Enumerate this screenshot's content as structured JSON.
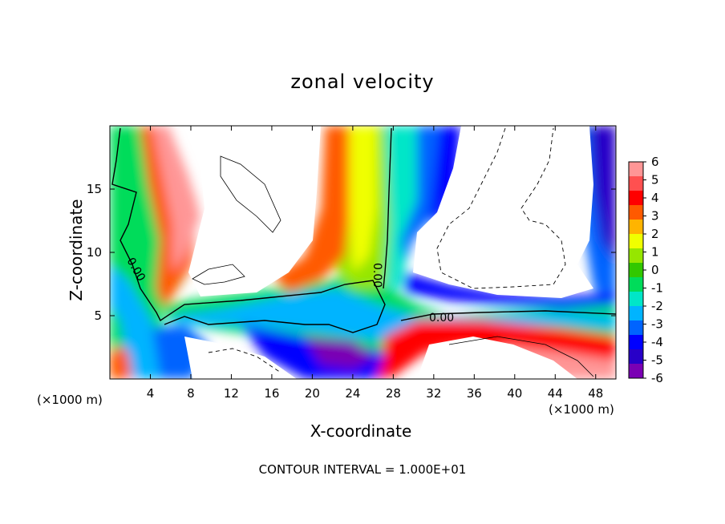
{
  "chart_data": {
    "type": "heatmap",
    "title": "zonal velocity",
    "xlabel": "X-coordinate",
    "ylabel": "Z-coordinate",
    "x_unit_left": "(×1000 m)",
    "x_unit_right": "(×1000 m)",
    "xlim": [
      0,
      50
    ],
    "ylim": [
      0,
      20
    ],
    "x_ticks": [
      4,
      8,
      12,
      16,
      20,
      24,
      28,
      32,
      36,
      40,
      44,
      48
    ],
    "y_ticks": [
      5,
      10,
      15
    ],
    "colorbar_levels": [
      6,
      5,
      4,
      3,
      2,
      1,
      0,
      -1,
      -2,
      -3,
      -4,
      -5,
      -6
    ],
    "contour_labels": [
      {
        "text": "0.00",
        "x": 3,
        "z": 8.5
      },
      {
        "text": "0.00",
        "x": 26.5,
        "z": 8.3
      },
      {
        "text": "0.00",
        "x": 33.5,
        "z": 4.6
      }
    ],
    "footer": "CONTOUR INTERVAL = 1.000E+01",
    "colormap": [
      "#7a00b4",
      "#2800c8",
      "#0000ff",
      "#0064ff",
      "#00b4ff",
      "#00e6c8",
      "#00dc5a",
      "#32c800",
      "#96e600",
      "#f0ff00",
      "#ffb400",
      "#ff5a00",
      "#ff0000",
      "#ff5050",
      "#ff9696"
    ]
  }
}
